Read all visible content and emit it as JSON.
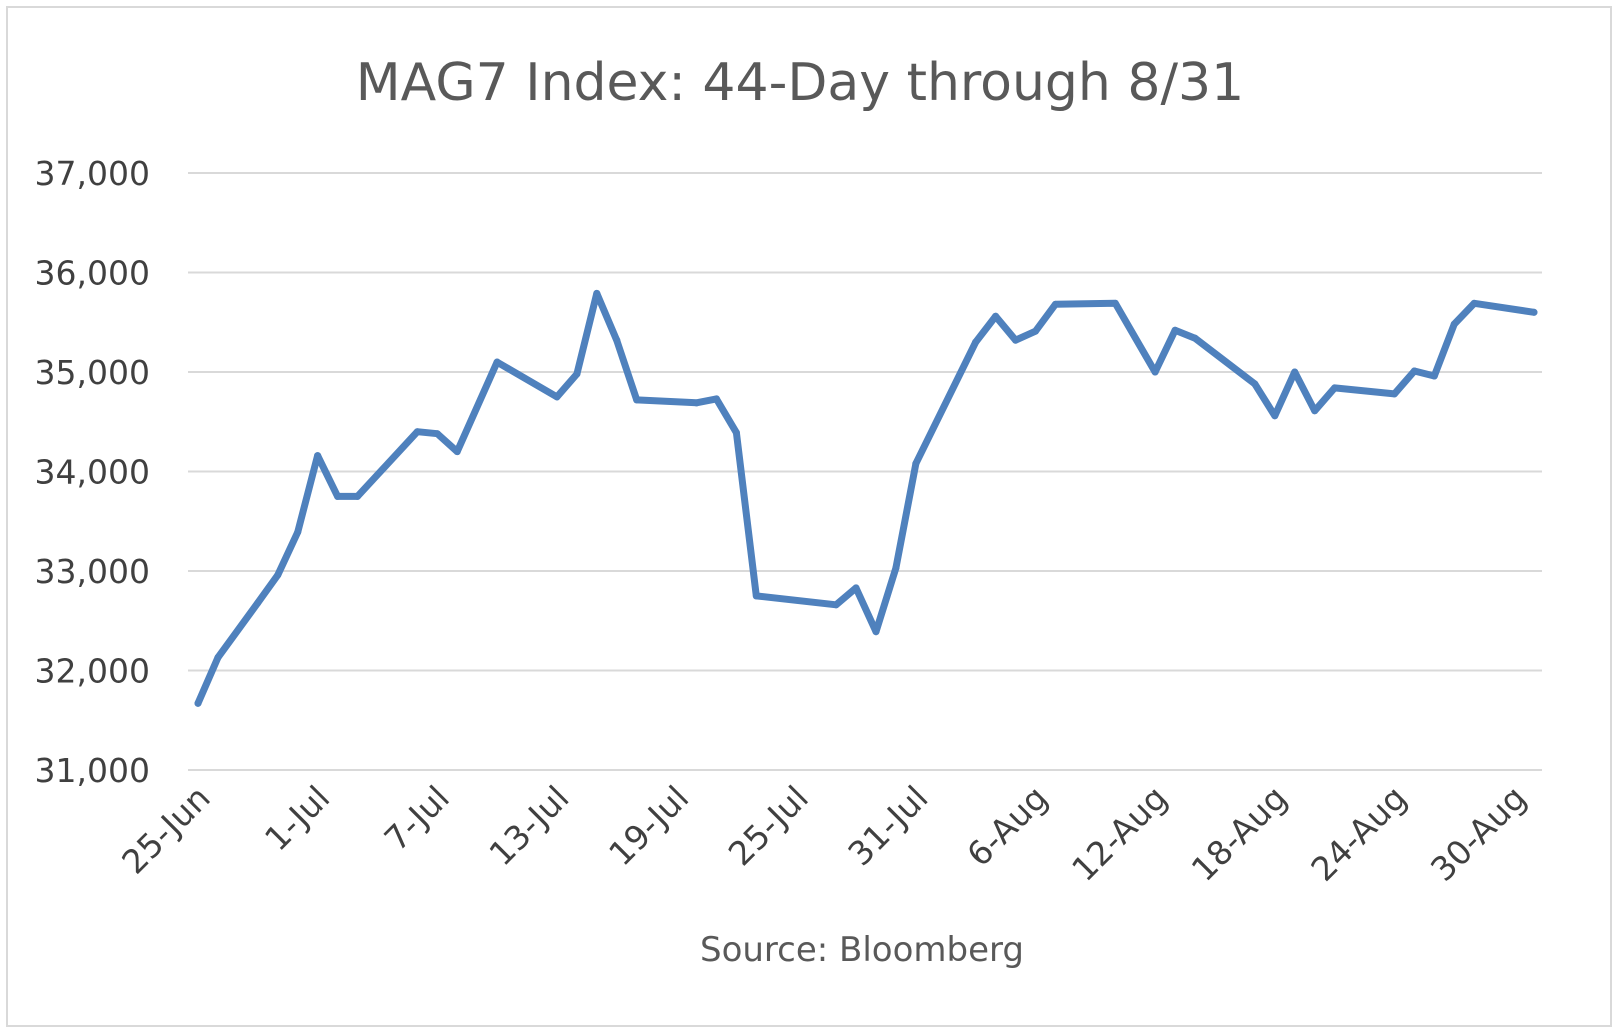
{
  "chart_data": {
    "type": "line",
    "title": "MAG7 Index: 44-Day through 8/31",
    "source": "Source: Bloomberg",
    "xlabel": "",
    "ylabel": "",
    "ylim": [
      31000,
      37000
    ],
    "y_ticks": [
      31000,
      32000,
      33000,
      34000,
      35000,
      36000,
      37000
    ],
    "y_tick_labels": [
      "31,000",
      "32,000",
      "33,000",
      "34,000",
      "35,000",
      "36,000",
      "37,000"
    ],
    "x_range": [
      "2024-06-25",
      "2024-08-31"
    ],
    "x_ticks": [
      "2024-06-25",
      "2024-07-01",
      "2024-07-07",
      "2024-07-13",
      "2024-07-19",
      "2024-07-25",
      "2024-07-31",
      "2024-08-06",
      "2024-08-12",
      "2024-08-18",
      "2024-08-24",
      "2024-08-30"
    ],
    "x_tick_labels": [
      "25-Jun",
      "1-Jul",
      "7-Jul",
      "13-Jul",
      "19-Jul",
      "25-Jul",
      "31-Jul",
      "6-Aug",
      "12-Aug",
      "18-Aug",
      "24-Aug",
      "30-Aug"
    ],
    "grid": true,
    "legend": "none",
    "line_color": "#4f81bd",
    "series": [
      {
        "x": [
          "2024-06-25",
          "2024-06-26",
          "2024-06-28",
          "2024-06-29",
          "2024-06-30",
          "2024-07-01",
          "2024-07-02",
          "2024-07-03",
          "2024-07-06",
          "2024-07-07",
          "2024-07-08",
          "2024-07-10",
          "2024-07-13",
          "2024-07-14",
          "2024-07-15",
          "2024-07-16",
          "2024-07-17",
          "2024-07-20",
          "2024-07-21",
          "2024-07-22",
          "2024-07-23",
          "2024-07-27",
          "2024-07-28",
          "2024-07-29",
          "2024-07-30",
          "2024-07-31",
          "2024-08-03",
          "2024-08-04",
          "2024-08-05",
          "2024-08-06",
          "2024-08-07",
          "2024-08-10",
          "2024-08-12",
          "2024-08-13",
          "2024-08-14",
          "2024-08-17",
          "2024-08-18",
          "2024-08-19",
          "2024-08-20",
          "2024-08-21",
          "2024-08-24",
          "2024-08-25",
          "2024-08-26",
          "2024-08-27",
          "2024-08-28",
          "2024-08-31"
        ],
        "values": [
          31670,
          32130,
          32680,
          32960,
          33390,
          34160,
          33750,
          33750,
          34400,
          34380,
          34200,
          35100,
          34750,
          34980,
          35790,
          35320,
          34720,
          34690,
          34730,
          34390,
          32750,
          32660,
          32830,
          32390,
          33030,
          34080,
          35300,
          35560,
          35320,
          35410,
          35680,
          35690,
          35000,
          35420,
          35340,
          34880,
          34560,
          35000,
          34610,
          34840,
          34780,
          35010,
          34960,
          35480,
          35690,
          35600
        ]
      }
    ]
  }
}
